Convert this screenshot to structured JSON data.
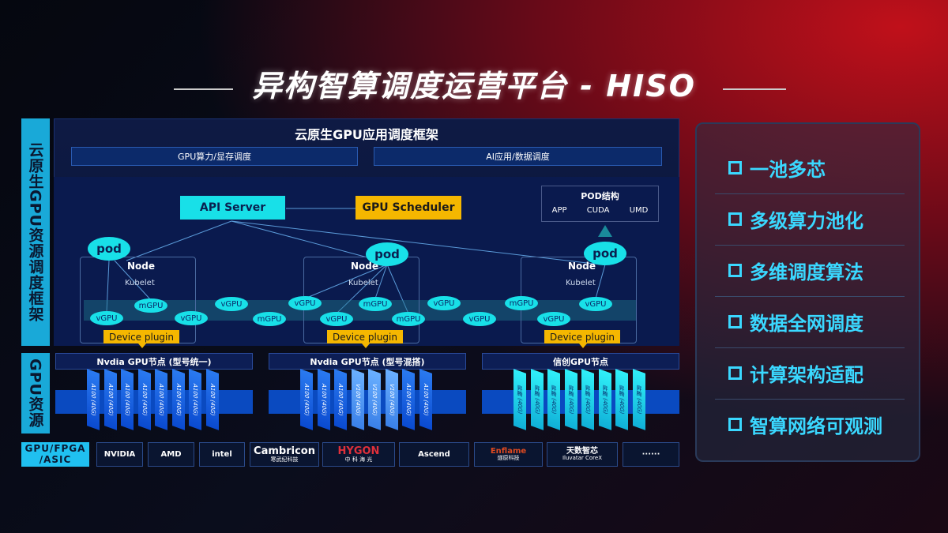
{
  "title": "异构智算调度运营平台 - HISO",
  "left_labels": {
    "top": "云原生GPU资源调度框架",
    "bottom": "GPU资源"
  },
  "framework": {
    "header": "云原生GPU应用调度框架",
    "bars": [
      "GPU算力/显存调度",
      "AI应用/数据调度"
    ]
  },
  "diagram": {
    "api_server": "API Server",
    "gpu_scheduler": "GPU Scheduler",
    "pod_structure": {
      "title": "POD结构",
      "items": [
        "APP",
        "CUDA",
        "UMD"
      ]
    },
    "pod_label": "pod",
    "node_label": "Node",
    "kubelet_label": "Kubelet",
    "device_plugin_label": "Device plugin",
    "gpu_ellipses": [
      "vGPU",
      "mGPU",
      "vGPU",
      "vGPU",
      "mGPU",
      "vGPU",
      "vGPU",
      "mGPU",
      "mGPU",
      "vGPU",
      "vGPU",
      "mGPU",
      "vGPU",
      "vGPU"
    ]
  },
  "gpu_nodes": [
    {
      "title": "Nvdia GPU节点 (型号统一)",
      "cards": [
        "A100 (40G)",
        "A100 (40G)",
        "A100 (40G)",
        "A100 (40G)",
        "A100 (40G)",
        "A100 (40G)",
        "A100 (40G)",
        "A100 (40G)"
      ]
    },
    {
      "title": "Nvdia GPU节点 (型号混搭)",
      "cards": [
        "A100 (40G)",
        "A100 (40G)",
        "A100 (40G)",
        "V100 (40G)",
        "V100 (40G)",
        "V100 (40G)",
        "A100 (40G)",
        "A100 (40G)"
      ]
    },
    {
      "title": "信创GPU节点",
      "cards": [
        "昇腾 (40G)",
        "昇腾 (40G)",
        "昇腾 (40G)",
        "昇腾 (40G)",
        "昇腾 (40G)",
        "昇腾 (40G)",
        "昇腾 (40G)",
        "昇腾 (40G)"
      ]
    }
  ],
  "vendor_row": {
    "label": "GPU/FPGA /ASIC",
    "vendors": [
      {
        "name": "NVIDIA",
        "sub": ""
      },
      {
        "name": "AMD",
        "sub": ""
      },
      {
        "name": "intel",
        "sub": ""
      },
      {
        "name": "Cambricon",
        "sub": "寒武纪科技"
      },
      {
        "name": "HYGON",
        "sub": "中 科 海 光"
      },
      {
        "name": "Ascend",
        "sub": ""
      },
      {
        "name": "Enflame",
        "sub": "燧原科技"
      },
      {
        "name": "天数智芯",
        "sub": "Iluvatar CoreX"
      },
      {
        "name": "······",
        "sub": ""
      }
    ]
  },
  "features": [
    "一池多芯",
    "多级算力池化",
    "多维调度算法",
    "数据全网调度",
    "计算架构适配",
    "智算网络可观测"
  ],
  "colors": {
    "cyan": "#18e0e8",
    "yellow": "#f5b700",
    "blue": "#0a4ac0",
    "accent": "#3ad8ff"
  }
}
